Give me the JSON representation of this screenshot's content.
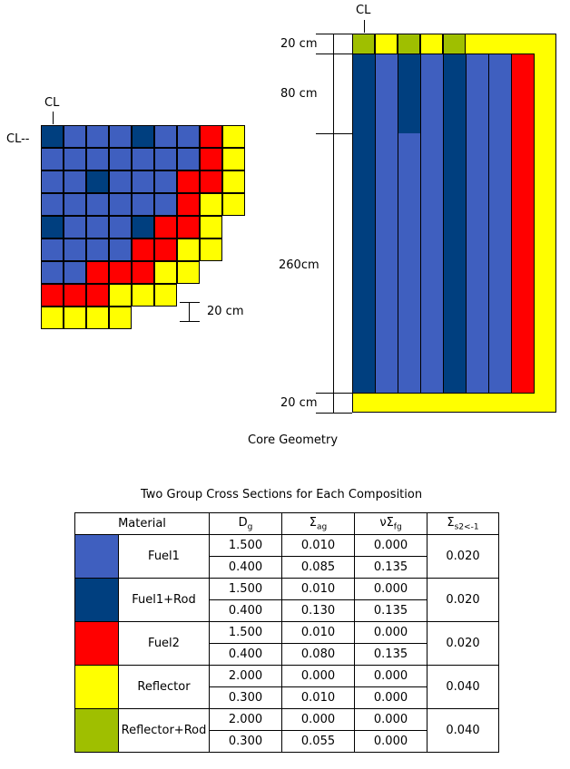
{
  "colors": {
    "fuel1": "#3f5fbf",
    "fuel1_rod": "#003f7f",
    "fuel2": "#ff0000",
    "reflector": "#ffff00",
    "reflector_rod": "#9fbf00"
  },
  "left_view": {
    "cl_top": "CL",
    "cl_left": "CL--",
    "scale_label": "20 cm",
    "grid": [
      "DBBBDBBRY",
      "BBBBBBBRY",
      "BBDBBBRRY",
      "BBBBBBRYY",
      "DBBBDRRY",
      "BBBBRRYY",
      "BBRRRYY",
      "RRRYYY",
      "YYYY"
    ]
  },
  "right_view": {
    "cl_label": "CL",
    "dims": [
      "20 cm",
      "80 cm",
      "260cm",
      "20 cm"
    ],
    "top_row": [
      "G",
      "Y",
      "G",
      "Y",
      "G",
      "Y",
      "Y",
      "Y",
      "Y"
    ],
    "columns": [
      "D",
      "B",
      "DB",
      "B",
      "D",
      "B",
      "B",
      "R"
    ]
  },
  "caption": "Core Geometry",
  "table": {
    "title": "Two Group Cross Sections for Each Composition",
    "headers": {
      "material": "Material",
      "d": "D",
      "d_sub": "g",
      "sa": "Σ",
      "sa_sub": "ag",
      "nsf": "νΣ",
      "nsf_sub": "fg",
      "ss": "Σ",
      "ss_sub": "s2<-1"
    },
    "rows": [
      {
        "key": "fuel1",
        "name": "Fuel1",
        "g1": [
          "1.500",
          "0.010",
          "0.000"
        ],
        "g2": [
          "0.400",
          "0.085",
          "0.135"
        ],
        "scatter": "0.020"
      },
      {
        "key": "fuel1_rod",
        "name": "Fuel1+Rod",
        "g1": [
          "1.500",
          "0.010",
          "0.000"
        ],
        "g2": [
          "0.400",
          "0.130",
          "0.135"
        ],
        "scatter": "0.020"
      },
      {
        "key": "fuel2",
        "name": "Fuel2",
        "g1": [
          "1.500",
          "0.010",
          "0.000"
        ],
        "g2": [
          "0.400",
          "0.080",
          "0.135"
        ],
        "scatter": "0.020"
      },
      {
        "key": "reflector",
        "name": "Reflector",
        "g1": [
          "2.000",
          "0.000",
          "0.000"
        ],
        "g2": [
          "0.300",
          "0.010",
          "0.000"
        ],
        "scatter": "0.040"
      },
      {
        "key": "reflector_rod",
        "name": "Reflector+Rod",
        "g1": [
          "2.000",
          "0.000",
          "0.000"
        ],
        "g2": [
          "0.300",
          "0.055",
          "0.000"
        ],
        "scatter": "0.040"
      }
    ]
  }
}
